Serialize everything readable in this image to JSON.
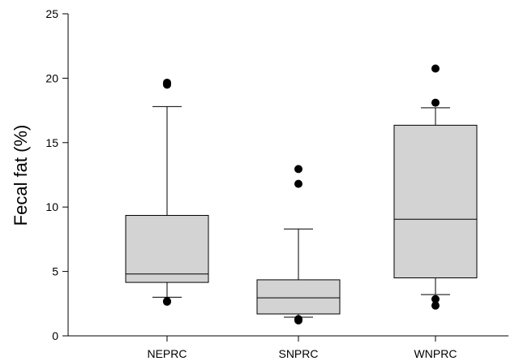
{
  "chart_data": {
    "type": "box",
    "title": "",
    "xlabel": "",
    "ylabel": "Fecal fat (%)",
    "ylim": [
      0,
      25
    ],
    "yticks": [
      0,
      5,
      10,
      15,
      20,
      25
    ],
    "grid": false,
    "box_fill": "#d3d3d3",
    "categories": [
      "NEPRC",
      "SNPRC",
      "WNPRC"
    ],
    "boxes": [
      {
        "category": "NEPRC",
        "whisker_low": 3.0,
        "q1": 4.15,
        "median": 4.8,
        "q3": 9.35,
        "whisker_high": 17.8,
        "outliers": [
          2.7,
          2.65,
          19.5,
          19.65
        ]
      },
      {
        "category": "SNPRC",
        "whisker_low": 1.45,
        "q1": 1.7,
        "median": 2.95,
        "q3": 4.35,
        "whisker_high": 8.3,
        "outliers": [
          1.3,
          1.2,
          11.8,
          12.95
        ]
      },
      {
        "category": "WNPRC",
        "whisker_low": 3.2,
        "q1": 4.5,
        "median": 9.05,
        "q3": 16.35,
        "whisker_high": 17.7,
        "outliers": [
          2.85,
          2.35,
          18.1,
          20.75
        ]
      }
    ]
  }
}
